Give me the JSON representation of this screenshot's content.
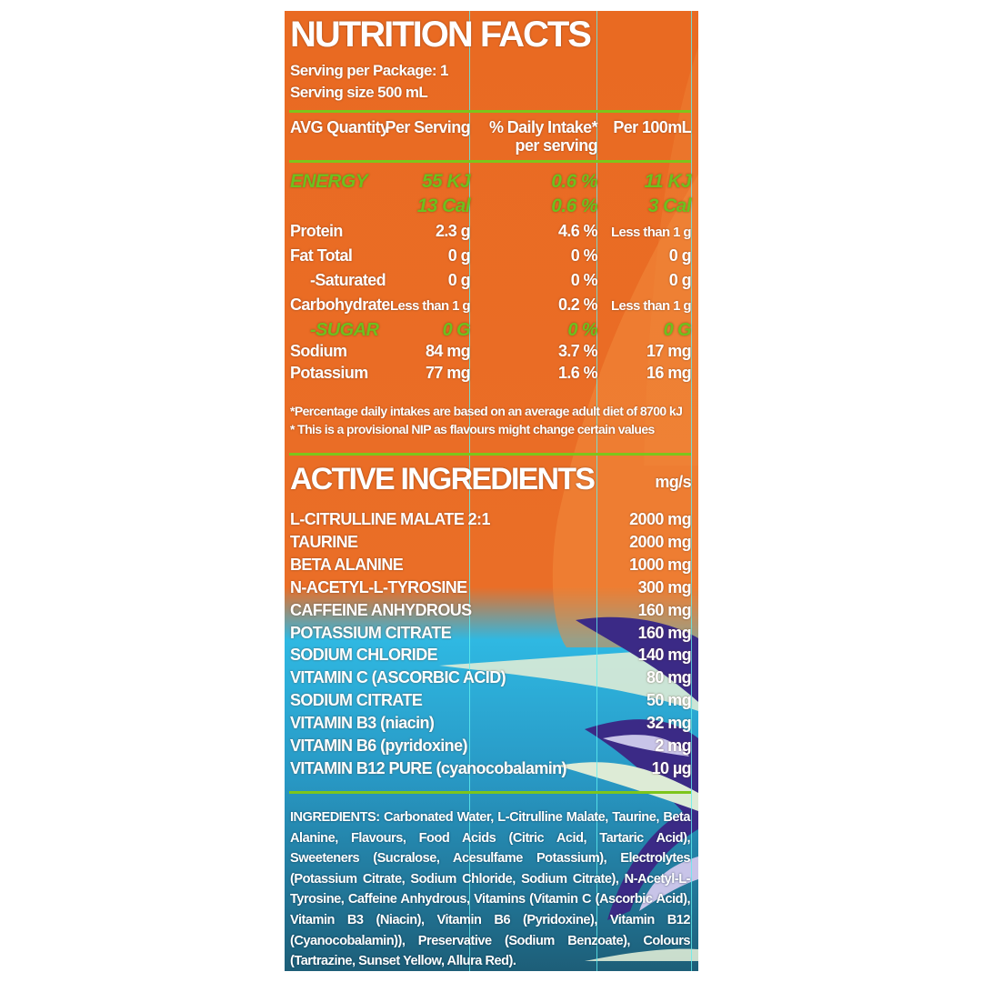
{
  "title": "NUTRITION FACTS",
  "serving_per_package": "Serving per Package: 1",
  "serving_size": "Serving size  500 mL",
  "headers": {
    "avg": "AVG Quantity",
    "per_serving": "Per Serving",
    "daily_1": "% Daily Intake*",
    "daily_2": "per serving",
    "per100": "Per 100mL"
  },
  "energy": [
    {
      "label": "ENERGY",
      "serving": "55 KJ",
      "daily": "0.6 %",
      "per100": "11 KJ"
    },
    {
      "label": "",
      "serving": "13 Cal",
      "daily": "0.6 %",
      "per100": "3 Cal"
    }
  ],
  "nutrients": [
    {
      "label": "Protein",
      "serving": "2.3 g",
      "daily": "4.6 %",
      "per100": "Less than 1 g",
      "highlight": false
    },
    {
      "label": "Fat Total",
      "serving": "0 g",
      "daily": "0 %",
      "per100": "0 g",
      "highlight": false
    },
    {
      "label": "-Saturated",
      "serving": "0 g",
      "daily": "0 %",
      "per100": "0 g",
      "highlight": false
    },
    {
      "label": "Carbohydrate",
      "serving": "Less than 1 g",
      "daily": "0.2  %",
      "per100": "Less than 1 g",
      "highlight": false
    },
    {
      "label": "-SUGAR",
      "serving": "0 G",
      "daily": "0 %",
      "per100": "0 G",
      "highlight": true
    },
    {
      "label": "Sodium",
      "serving": "84 mg",
      "daily": "3.7  %",
      "per100": "17  mg",
      "highlight": false
    },
    {
      "label": "Potassium",
      "serving": "77 mg",
      "daily": "1.6  %",
      "per100": "16  mg",
      "highlight": false
    }
  ],
  "footnotes": [
    "*Percentage daily intakes are based on an average adult diet of 8700 kJ",
    "* This is a provisional NIP as flavours might change certain values"
  ],
  "active": {
    "title": "ACTIVE INGREDIENTS",
    "unit": "mg/s",
    "items": [
      {
        "name": "L-CITRULLINE MALATE 2:1",
        "amount": "2000 mg"
      },
      {
        "name": "TAURINE",
        "amount": "2000 mg"
      },
      {
        "name": "BETA ALANINE",
        "amount": "1000 mg"
      },
      {
        "name": "N-ACETYL-L-TYROSINE",
        "amount": "300 mg"
      },
      {
        "name": "CAFFEINE ANHYDROUS",
        "amount": "160 mg"
      },
      {
        "name": "POTASSIUM CITRATE",
        "amount": "160 mg"
      },
      {
        "name": "SODIUM CHLORIDE",
        "amount": "140 mg"
      },
      {
        "name": "VITAMIN C (ASCORBIC ACID)",
        "amount": "80 mg"
      },
      {
        "name": "SODIUM CITRATE",
        "amount": "50 mg"
      },
      {
        "name": "VITAMIN B3 (niacin)",
        "amount": "32 mg"
      },
      {
        "name": "VITAMIN B6 (pyridoxine)",
        "amount": "2 mg"
      },
      {
        "name": "VITAMIN B12 PURE (cyanocobalamin)",
        "amount": "10 µg"
      }
    ]
  },
  "ingredients": "INGREDIENTS: Carbonated Water, L-Citrulline Malate, Taurine, Beta Alanine, Flavours, Food Acids (Citric Acid, Tartaric Acid), Sweeteners (Sucralose, Acesulfame Potassium), Electrolytes (Potassium Citrate, Sodium Chloride, Sodium Citrate), N-Acetyl-L-Tyrosine, Caffeine Anhydrous, Vitamins (Vitamin C (Ascorbic Acid), Vitamin B3 (Niacin), Vitamin B6 (Pyridoxine), Vitamin B12 (Cyanocobalamin)), Preservative (Sodium Benzoate), Colours (Tartrazine, Sunset Yellow, Allura Red).",
  "colors": {
    "orange": "#E96A22",
    "green": "#7DC51B",
    "blue": "#2FB8E2",
    "dark_teal": "#1D5E78",
    "purple": "#3B2A86"
  }
}
